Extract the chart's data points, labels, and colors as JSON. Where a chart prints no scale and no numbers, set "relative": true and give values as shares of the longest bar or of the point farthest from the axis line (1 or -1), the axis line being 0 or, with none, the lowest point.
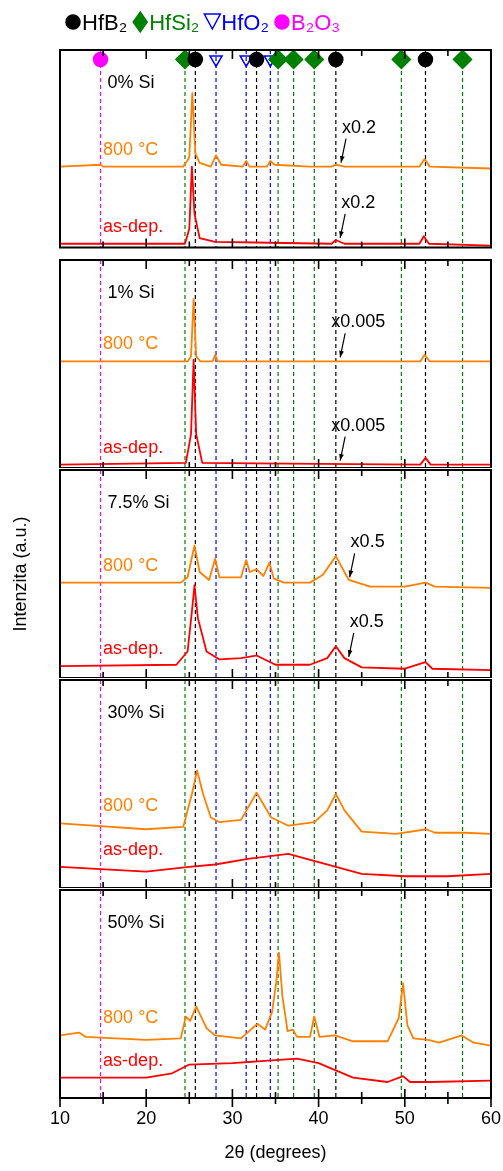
{
  "chart_data": [
    {
      "type": "line",
      "relative": true,
      "legend": "top",
      "xlim": [
        10,
        60
      ],
      "tick_labels": false,
      "xticks": [
        10,
        {
          "value": 15,
          "label": null
        },
        20,
        {
          "value": 25,
          "label": null
        },
        30,
        {
          "value": 35,
          "label": null
        },
        40,
        {
          "value": 45,
          "label": null
        },
        50,
        {
          "value": 55,
          "label": null
        },
        60
      ],
      "series": [
        {
          "name": "800 °C",
          "color": "#ff8000",
          "x": [
            10,
            14.7,
            15,
            24.3,
            24.6,
            25.0,
            25.35,
            25.7,
            26.2,
            27.5,
            28.1,
            28.7,
            31.2,
            31.6,
            32.0,
            34.0,
            34.4,
            34.9,
            39.0,
            41.5,
            42.0,
            43,
            51.7,
            52.3,
            52.9,
            60
          ],
          "values": [
            0.43,
            0.44,
            0.43,
            0.43,
            0.45,
            0.48,
            0.82,
            0.5,
            0.45,
            0.43,
            0.49,
            0.44,
            0.43,
            0.46,
            0.43,
            0.43,
            0.46,
            0.44,
            0.43,
            0.43,
            0.44,
            0.43,
            0.43,
            0.47,
            0.43,
            0.42
          ]
        },
        {
          "name": "as-dep.",
          "color": "#ff0000",
          "x": [
            10,
            24.5,
            25.0,
            25.3,
            25.6,
            26.2,
            28,
            41.5,
            42.0,
            43,
            51.7,
            52.2,
            52.8,
            60
          ],
          "values": [
            0.02,
            0.02,
            0.1,
            0.43,
            0.18,
            0.05,
            0.03,
            0.02,
            0.04,
            0.02,
            0.02,
            0.06,
            0.02,
            0.01
          ]
        },
        {
          "name": "HfB₂",
          "type": "scatter",
          "marker": "circle",
          "color": "#000000",
          "x": [
            25.7,
            32.8,
            42.0,
            52.4
          ],
          "values": [
            1,
            1,
            1,
            1
          ]
        },
        {
          "name": "HfSi₂",
          "type": "scatter",
          "marker": "diamond",
          "color": "#008000",
          "x": [
            24.5,
            35.3,
            37.1,
            39.5,
            49.6,
            56.7
          ],
          "values": [
            1,
            1,
            1,
            1,
            1,
            1
          ]
        },
        {
          "name": "HfO₂",
          "type": "scatter",
          "marker": "triangle",
          "color": "#0000ff",
          "x": [
            28.1,
            31.6,
            34.4
          ],
          "values": [
            1,
            1,
            1
          ]
        },
        {
          "name": "B₂O₃",
          "type": "scatter",
          "marker": "circle",
          "color": "#ff00ff",
          "x": [
            14.7
          ],
          "values": [
            1
          ]
        }
      ],
      "ref_lines": [
        {
          "axis": "x",
          "value": 14.7,
          "color": "#ff00ff",
          "line_style": "dashed"
        },
        {
          "axis": "x",
          "value": 24.5,
          "color": "#008000",
          "line_style": "dashed"
        },
        {
          "axis": "x",
          "value": 25.7,
          "color": "#000000",
          "line_style": "dashed"
        },
        {
          "axis": "x",
          "value": 28.1,
          "color": "#0000ff",
          "line_style": "dashed"
        },
        {
          "axis": "x",
          "value": 31.6,
          "color": "#0000ff",
          "line_style": "dashed"
        },
        {
          "axis": "x",
          "value": 32.8,
          "color": "#000000",
          "line_style": "dashed"
        },
        {
          "axis": "x",
          "value": 34.4,
          "color": "#0000ff",
          "line_style": "dashed"
        },
        {
          "axis": "x",
          "value": 35.3,
          "color": "#008000",
          "line_style": "dashed"
        },
        {
          "axis": "x",
          "value": 37.1,
          "color": "#008000",
          "line_style": "dashed"
        },
        {
          "axis": "x",
          "value": 39.5,
          "color": "#008000",
          "line_style": "dashed"
        },
        {
          "axis": "x",
          "value": 42.0,
          "color": "#000000",
          "line_style": "dashed"
        },
        {
          "axis": "x",
          "value": 49.6,
          "color": "#008000",
          "line_style": "dashed"
        },
        {
          "axis": "x",
          "value": 52.4,
          "color": "#000000",
          "line_style": "dashed"
        },
        {
          "axis": "x",
          "value": 56.7,
          "color": "#008000",
          "line_style": "dashed"
        }
      ],
      "annotations": [
        "0% Si",
        {
          "text": "x0.2",
          "x": 42.6,
          "y": 0.43
        },
        {
          "text": "x0.2",
          "x": 42.5,
          "y": 0.03
        }
      ]
    },
    {
      "type": "line",
      "relative": true,
      "xlim": [
        10,
        60
      ],
      "tick_labels": false,
      "xticks": [
        10,
        {
          "value": 15,
          "label": null
        },
        20,
        {
          "value": 25,
          "label": null
        },
        30,
        {
          "value": 35,
          "label": null
        },
        40,
        {
          "value": 45,
          "label": null
        },
        50,
        {
          "value": 55,
          "label": null
        },
        60
      ],
      "series": [
        {
          "name": "800 °C",
          "color": "#ff8000",
          "x": [
            10,
            24.8,
            25.2,
            25.5,
            25.8,
            26.3,
            27.7,
            28.0,
            28.3,
            51.8,
            52.3,
            52.9,
            60
          ],
          "values": [
            0.63,
            0.63,
            0.66,
            1.0,
            0.66,
            0.63,
            0.63,
            0.67,
            0.63,
            0.63,
            0.67,
            0.63,
            0.63
          ]
        },
        {
          "name": "as-dep.",
          "color": "#ff0000",
          "x": [
            10,
            24.6,
            25.2,
            25.5,
            25.8,
            26.5,
            51.8,
            52.4,
            53.0,
            60
          ],
          "values": [
            0.02,
            0.03,
            0.2,
            0.64,
            0.2,
            0.03,
            0.02,
            0.06,
            0.02,
            0.02
          ]
        }
      ],
      "ref_lines": [
        {
          "axis": "x",
          "value": 14.7,
          "color": "#ff00ff",
          "line_style": "dashed"
        },
        {
          "axis": "x",
          "value": 24.5,
          "color": "#008000",
          "line_style": "dashed"
        },
        {
          "axis": "x",
          "value": 25.7,
          "color": "#000000",
          "line_style": "dashed"
        },
        {
          "axis": "x",
          "value": 28.1,
          "color": "#0000ff",
          "line_style": "dashed"
        },
        {
          "axis": "x",
          "value": 31.6,
          "color": "#0000ff",
          "line_style": "dashed"
        },
        {
          "axis": "x",
          "value": 32.8,
          "color": "#000000",
          "line_style": "dashed"
        },
        {
          "axis": "x",
          "value": 34.4,
          "color": "#0000ff",
          "line_style": "dashed"
        },
        {
          "axis": "x",
          "value": 35.3,
          "color": "#008000",
          "line_style": "dashed"
        },
        {
          "axis": "x",
          "value": 37.1,
          "color": "#008000",
          "line_style": "dashed"
        },
        {
          "axis": "x",
          "value": 39.5,
          "color": "#008000",
          "line_style": "dashed"
        },
        {
          "axis": "x",
          "value": 42.0,
          "color": "#000000",
          "line_style": "dashed"
        },
        {
          "axis": "x",
          "value": 49.6,
          "color": "#008000",
          "line_style": "dashed"
        },
        {
          "axis": "x",
          "value": 52.4,
          "color": "#000000",
          "line_style": "dashed"
        },
        {
          "axis": "x",
          "value": 56.7,
          "color": "#008000",
          "line_style": "dashed"
        }
      ],
      "annotations": [
        "1% Si",
        {
          "text": "x0.005",
          "x": 42.5,
          "y": 0.63
        },
        {
          "text": "x0.005",
          "x": 42.5,
          "y": 0.02
        }
      ]
    },
    {
      "type": "line",
      "relative": true,
      "xlim": [
        10,
        60
      ],
      "tick_labels": false,
      "ylabel": "Intenzita (a.u.)",
      "xticks": [
        10,
        {
          "value": 15,
          "label": null
        },
        20,
        {
          "value": 25,
          "label": null
        },
        30,
        {
          "value": 35,
          "label": null
        },
        40,
        {
          "value": 45,
          "label": null
        },
        50,
        {
          "value": 55,
          "label": null
        },
        60
      ],
      "series": [
        {
          "name": "800 °C",
          "color": "#ff8000",
          "x": [
            10,
            24.0,
            24.8,
            25.6,
            26.2,
            27.3,
            28.0,
            28.5,
            31.0,
            31.6,
            32.0,
            32.8,
            33.6,
            34.3,
            34.8,
            36,
            39,
            40.5,
            42,
            43.5,
            46,
            50,
            52.4,
            53.5,
            60
          ],
          "values": [
            0.72,
            0.72,
            0.76,
            1.0,
            0.8,
            0.74,
            0.9,
            0.76,
            0.76,
            0.89,
            0.8,
            0.82,
            0.77,
            0.87,
            0.75,
            0.72,
            0.72,
            0.78,
            0.92,
            0.74,
            0.69,
            0.69,
            0.72,
            0.69,
            0.68
          ]
        },
        {
          "name": "as-dep.",
          "color": "#ff0000",
          "x": [
            10,
            23.5,
            24.8,
            25.3,
            25.6,
            26.0,
            27,
            28.5,
            31,
            32.8,
            35,
            39,
            41,
            42,
            43,
            45,
            50,
            52.4,
            53.2,
            60
          ],
          "values": [
            0.09,
            0.1,
            0.2,
            0.5,
            0.7,
            0.45,
            0.2,
            0.14,
            0.15,
            0.17,
            0.1,
            0.1,
            0.15,
            0.24,
            0.15,
            0.08,
            0.07,
            0.12,
            0.07,
            0.06
          ]
        }
      ],
      "ref_lines": [
        {
          "axis": "x",
          "value": 14.7,
          "color": "#ff00ff",
          "line_style": "dashed"
        },
        {
          "axis": "x",
          "value": 24.5,
          "color": "#008000",
          "line_style": "dashed"
        },
        {
          "axis": "x",
          "value": 25.7,
          "color": "#000000",
          "line_style": "dashed"
        },
        {
          "axis": "x",
          "value": 28.1,
          "color": "#0000ff",
          "line_style": "dashed"
        },
        {
          "axis": "x",
          "value": 31.6,
          "color": "#0000ff",
          "line_style": "dashed"
        },
        {
          "axis": "x",
          "value": 32.8,
          "color": "#000000",
          "line_style": "dashed"
        },
        {
          "axis": "x",
          "value": 34.4,
          "color": "#0000ff",
          "line_style": "dashed"
        },
        {
          "axis": "x",
          "value": 35.3,
          "color": "#008000",
          "line_style": "dashed"
        },
        {
          "axis": "x",
          "value": 37.1,
          "color": "#008000",
          "line_style": "dashed"
        },
        {
          "axis": "x",
          "value": 39.5,
          "color": "#008000",
          "line_style": "dashed"
        },
        {
          "axis": "x",
          "value": 42.0,
          "color": "#000000",
          "line_style": "dashed"
        },
        {
          "axis": "x",
          "value": 49.6,
          "color": "#008000",
          "line_style": "dashed"
        },
        {
          "axis": "x",
          "value": 52.4,
          "color": "#000000",
          "line_style": "dashed"
        },
        {
          "axis": "x",
          "value": 56.7,
          "color": "#008000",
          "line_style": "dashed"
        }
      ],
      "annotations": [
        "7.5% Si",
        {
          "text": "x0.5",
          "x": 43.6,
          "y": 0.73
        },
        {
          "text": "x0.5",
          "x": 43.5,
          "y": 0.13
        }
      ]
    },
    {
      "type": "line",
      "relative": true,
      "xlim": [
        10,
        60
      ],
      "tick_labels": false,
      "xticks": [
        10,
        {
          "value": 15,
          "label": null
        },
        20,
        {
          "value": 25,
          "label": null
        },
        30,
        {
          "value": 35,
          "label": null
        },
        40,
        {
          "value": 45,
          "label": null
        },
        50,
        {
          "value": 55,
          "label": null
        },
        60
      ],
      "series": [
        {
          "name": "800 °C",
          "color": "#ff8000",
          "x": [
            10,
            20,
            24.3,
            25.3,
            25.9,
            26.6,
            27.5,
            28.5,
            31,
            32.8,
            34.5,
            36.5,
            39.5,
            41,
            42,
            43,
            45,
            49,
            52.5,
            53.5,
            57,
            60
          ],
          "values": [
            0.55,
            0.5,
            0.52,
            0.8,
            1.0,
            0.8,
            0.6,
            0.56,
            0.58,
            0.81,
            0.6,
            0.53,
            0.56,
            0.66,
            0.8,
            0.66,
            0.48,
            0.46,
            0.5,
            0.47,
            0.47,
            0.46
          ]
        },
        {
          "name": "as-dep.",
          "color": "#ff0000",
          "x": [
            10,
            20,
            25,
            28,
            32,
            36.5,
            40,
            45,
            50,
            55,
            60
          ],
          "values": [
            0.18,
            0.14,
            0.18,
            0.2,
            0.25,
            0.29,
            0.22,
            0.12,
            0.1,
            0.1,
            0.12
          ]
        }
      ],
      "ref_lines": [
        {
          "axis": "x",
          "value": 14.7,
          "color": "#ff00ff",
          "line_style": "dashed"
        },
        {
          "axis": "x",
          "value": 24.5,
          "color": "#008000",
          "line_style": "dashed"
        },
        {
          "axis": "x",
          "value": 25.7,
          "color": "#000000",
          "line_style": "dashed"
        },
        {
          "axis": "x",
          "value": 28.1,
          "color": "#0000ff",
          "line_style": "dashed"
        },
        {
          "axis": "x",
          "value": 31.6,
          "color": "#0000ff",
          "line_style": "dashed"
        },
        {
          "axis": "x",
          "value": 32.8,
          "color": "#000000",
          "line_style": "dashed"
        },
        {
          "axis": "x",
          "value": 34.4,
          "color": "#0000ff",
          "line_style": "dashed"
        },
        {
          "axis": "x",
          "value": 35.3,
          "color": "#008000",
          "line_style": "dashed"
        },
        {
          "axis": "x",
          "value": 37.1,
          "color": "#008000",
          "line_style": "dashed"
        },
        {
          "axis": "x",
          "value": 39.5,
          "color": "#008000",
          "line_style": "dashed"
        },
        {
          "axis": "x",
          "value": 42.0,
          "color": "#000000",
          "line_style": "dashed"
        },
        {
          "axis": "x",
          "value": 49.6,
          "color": "#008000",
          "line_style": "dashed"
        },
        {
          "axis": "x",
          "value": 52.4,
          "color": "#000000",
          "line_style": "dashed"
        },
        {
          "axis": "x",
          "value": 56.7,
          "color": "#008000",
          "line_style": "dashed"
        }
      ],
      "annotations": [
        "30% Si"
      ]
    },
    {
      "type": "line",
      "relative": true,
      "xlim": [
        10,
        60
      ],
      "tick_labels": "x",
      "xlabel": "2θ (degrees)",
      "xticks": [
        10,
        {
          "value": 15,
          "label": null
        },
        20,
        {
          "value": 25,
          "label": null
        },
        30,
        {
          "value": 35,
          "label": null
        },
        40,
        {
          "value": 45,
          "label": null
        },
        50,
        {
          "value": 55,
          "label": null
        },
        60
      ],
      "series": [
        {
          "name": "800 °C",
          "color": "#ff8000",
          "x": [
            10,
            12.2,
            13,
            20,
            24.0,
            24.6,
            25.1,
            25.8,
            27,
            28,
            31,
            32.9,
            33.8,
            34.6,
            35.1,
            35.4,
            35.8,
            36.4,
            37.0,
            37.5,
            39.0,
            39.5,
            40.1,
            41.9,
            44,
            48,
            49.3,
            49.8,
            50.3,
            51,
            52.7,
            54,
            56.6,
            58,
            60
          ],
          "values": [
            0.43,
            0.45,
            0.42,
            0.4,
            0.41,
            0.56,
            0.53,
            0.63,
            0.48,
            0.43,
            0.41,
            0.51,
            0.47,
            0.59,
            0.8,
            1.0,
            0.7,
            0.46,
            0.47,
            0.42,
            0.42,
            0.56,
            0.42,
            0.43,
            0.39,
            0.39,
            0.55,
            0.79,
            0.5,
            0.41,
            0.4,
            0.38,
            0.43,
            0.38,
            0.36
          ]
        },
        {
          "name": "as-dep.",
          "color": "#ff0000",
          "x": [
            10,
            20,
            23,
            25,
            30,
            35,
            37.5,
            40,
            44,
            48,
            49.8,
            50.6,
            53,
            60
          ],
          "values": [
            0.14,
            0.14,
            0.17,
            0.23,
            0.24,
            0.26,
            0.27,
            0.24,
            0.14,
            0.11,
            0.15,
            0.11,
            0.11,
            0.12
          ]
        }
      ],
      "ref_lines": [
        {
          "axis": "x",
          "value": 14.7,
          "color": "#ff00ff",
          "line_style": "dashed"
        },
        {
          "axis": "x",
          "value": 24.5,
          "color": "#008000",
          "line_style": "dashed"
        },
        {
          "axis": "x",
          "value": 25.7,
          "color": "#000000",
          "line_style": "dashed"
        },
        {
          "axis": "x",
          "value": 28.1,
          "color": "#0000ff",
          "line_style": "dashed"
        },
        {
          "axis": "x",
          "value": 31.6,
          "color": "#0000ff",
          "line_style": "dashed"
        },
        {
          "axis": "x",
          "value": 32.8,
          "color": "#000000",
          "line_style": "dashed"
        },
        {
          "axis": "x",
          "value": 34.4,
          "color": "#0000ff",
          "line_style": "dashed"
        },
        {
          "axis": "x",
          "value": 35.3,
          "color": "#008000",
          "line_style": "dashed"
        },
        {
          "axis": "x",
          "value": 37.1,
          "color": "#008000",
          "line_style": "dashed"
        },
        {
          "axis": "x",
          "value": 39.5,
          "color": "#008000",
          "line_style": "dashed"
        },
        {
          "axis": "x",
          "value": 42.0,
          "color": "#000000",
          "line_style": "dashed"
        },
        {
          "axis": "x",
          "value": 49.6,
          "color": "#008000",
          "line_style": "dashed"
        },
        {
          "axis": "x",
          "value": 52.4,
          "color": "#000000",
          "line_style": "dashed"
        },
        {
          "axis": "x",
          "value": 56.7,
          "color": "#008000",
          "line_style": "dashed"
        }
      ],
      "annotations": [
        "50% Si"
      ]
    }
  ]
}
